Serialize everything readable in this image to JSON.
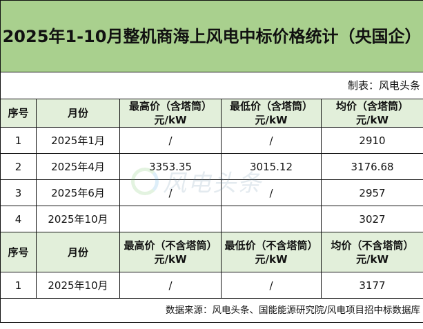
{
  "title": "2025年1-10月整机商海上风电中标价格统计（央国企）",
  "maker": "制表：风电头条",
  "colors": {
    "title_bg": "#a9d08e",
    "header_bg": "#e2efda"
  },
  "section1": {
    "headers": [
      "序号",
      "月份",
      "最高价（含塔筒）元/kW",
      "最低价（含塔筒）元/kW",
      "均价（含塔筒）元/kW"
    ],
    "rows": [
      [
        "1",
        "2025年1月",
        "/",
        "/",
        "2910"
      ],
      [
        "2",
        "2025年4月",
        "3353.35",
        "3015.12",
        "3176.68"
      ],
      [
        "3",
        "2025年6月",
        "/",
        "/",
        "2957"
      ],
      [
        "4",
        "2025年10月",
        "",
        "",
        "3027"
      ]
    ]
  },
  "section2": {
    "headers": [
      "序号",
      "月份",
      "最高价（不含塔筒）元/kW",
      "最低价（不含塔筒）元/kW",
      "均价（不含塔筒）元/kW"
    ],
    "rows": [
      [
        "1",
        "2025年10月",
        "/",
        "/",
        "3177"
      ]
    ]
  },
  "watermark": "风电头条",
  "source": "数据来源：风电头条、国能能源研究院/风电项目招中标数据库"
}
